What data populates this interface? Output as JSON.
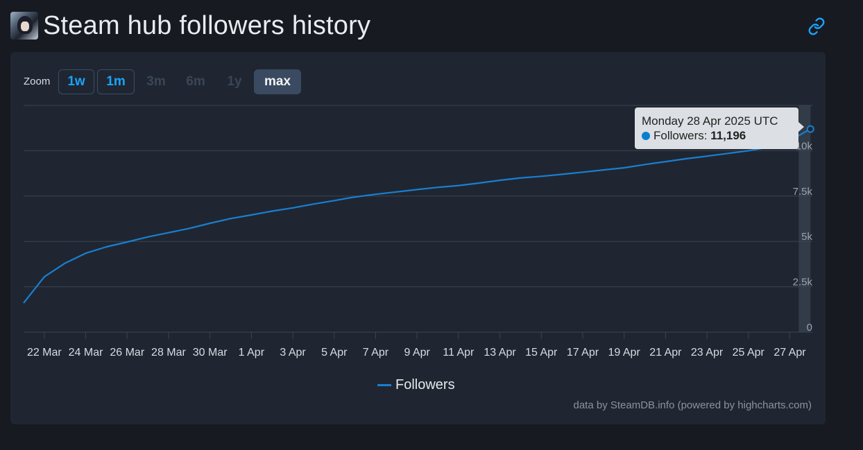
{
  "header": {
    "title": "Steam hub followers history"
  },
  "zoom": {
    "label": "Zoom",
    "buttons": [
      {
        "label": "1w",
        "state": "enabled"
      },
      {
        "label": "1m",
        "state": "enabled"
      },
      {
        "label": "3m",
        "state": "disabled"
      },
      {
        "label": "6m",
        "state": "disabled"
      },
      {
        "label": "1y",
        "state": "disabled"
      },
      {
        "label": "max",
        "state": "selected"
      }
    ]
  },
  "tooltip": {
    "date": "Monday 28 Apr 2025 UTC",
    "series_label": "Followers:",
    "value": "11,196"
  },
  "legend": {
    "label": "Followers"
  },
  "credits": "data by SteamDB.info (powered by highcharts.com)",
  "colors": {
    "series": "#1a7fd1",
    "background": "#171a21",
    "panel": "#1f2631",
    "grid": "#3b4452",
    "accent": "#1aa3ff"
  },
  "chart_data": {
    "type": "line",
    "series": [
      {
        "name": "Followers",
        "x": [
          "2025-03-21",
          "2025-03-22",
          "2025-03-23",
          "2025-03-24",
          "2025-03-25",
          "2025-03-26",
          "2025-03-27",
          "2025-03-28",
          "2025-03-29",
          "2025-03-30",
          "2025-03-31",
          "2025-04-01",
          "2025-04-02",
          "2025-04-03",
          "2025-04-04",
          "2025-04-05",
          "2025-04-06",
          "2025-04-07",
          "2025-04-08",
          "2025-04-09",
          "2025-04-10",
          "2025-04-11",
          "2025-04-12",
          "2025-04-13",
          "2025-04-14",
          "2025-04-15",
          "2025-04-16",
          "2025-04-17",
          "2025-04-18",
          "2025-04-19",
          "2025-04-20",
          "2025-04-21",
          "2025-04-22",
          "2025-04-23",
          "2025-04-24",
          "2025-04-25",
          "2025-04-26",
          "2025-04-27",
          "2025-04-28"
        ],
        "values": [
          1600,
          3050,
          3800,
          4350,
          4700,
          4970,
          5250,
          5480,
          5720,
          6000,
          6260,
          6460,
          6670,
          6850,
          7060,
          7250,
          7450,
          7600,
          7730,
          7860,
          7980,
          8080,
          8220,
          8370,
          8500,
          8590,
          8700,
          8820,
          8940,
          9060,
          9240,
          9400,
          9560,
          9700,
          9850,
          10000,
          10200,
          10560,
          11196
        ]
      }
    ],
    "x_tick_labels": [
      "22 Mar",
      "24 Mar",
      "26 Mar",
      "28 Mar",
      "30 Mar",
      "1 Apr",
      "3 Apr",
      "5 Apr",
      "7 Apr",
      "9 Apr",
      "11 Apr",
      "13 Apr",
      "15 Apr",
      "17 Apr",
      "19 Apr",
      "21 Apr",
      "23 Apr",
      "25 Apr",
      "27 Apr"
    ],
    "y_tick_labels": [
      "0",
      "2.5k",
      "5k",
      "7.5k",
      "10k"
    ],
    "ylim": [
      0,
      12500
    ],
    "y_axis_side": "right",
    "grid": true,
    "legend_position": "bottom-center"
  }
}
